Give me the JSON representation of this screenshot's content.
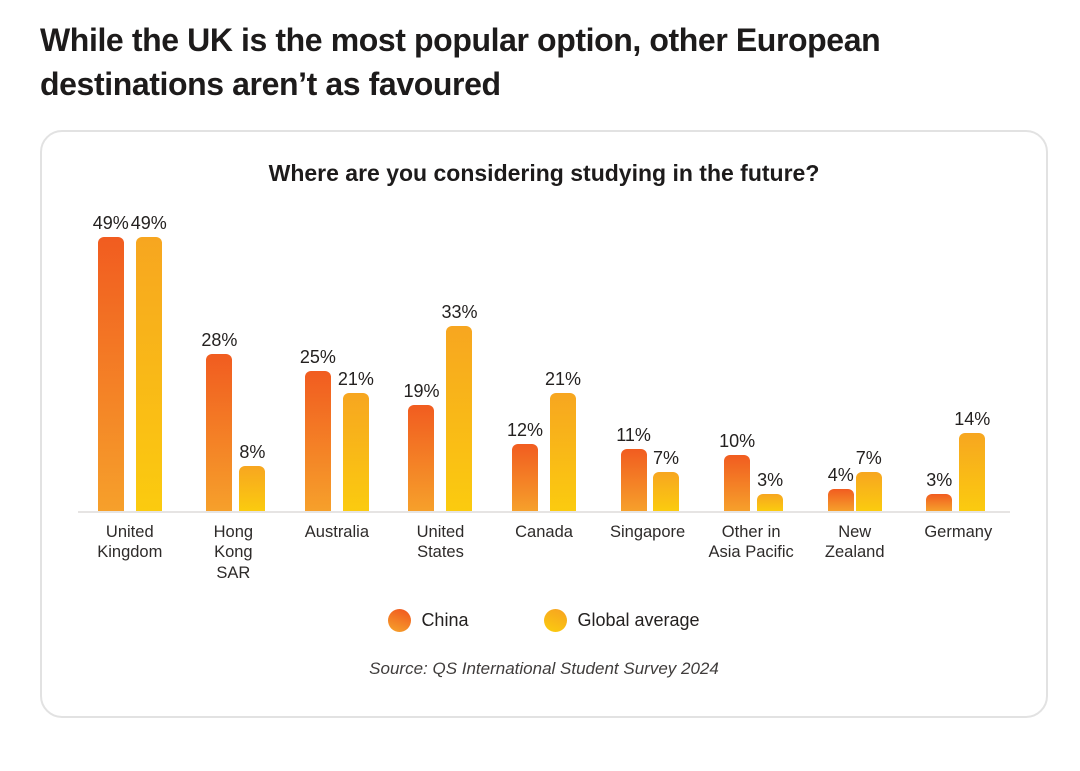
{
  "page": {
    "title": "While the UK is the most popular option, other European destinations aren’t as favoured"
  },
  "chart_data": {
    "type": "bar",
    "title": "Where are you considering studying in the future?",
    "categories": [
      "United Kingdom",
      "Hong Kong SAR",
      "Australia",
      "United States",
      "Canada",
      "Singapore",
      "Other in Asia Pacific",
      "New Zealand",
      "Germany"
    ],
    "category_lines": [
      [
        "United",
        "Kingdom"
      ],
      [
        "Hong",
        "Kong",
        "SAR"
      ],
      [
        "Australia"
      ],
      [
        "United",
        "States"
      ],
      [
        "Canada"
      ],
      [
        "Singapore"
      ],
      [
        "Other in",
        "Asia Pacific"
      ],
      [
        "New",
        "Zealand"
      ],
      [
        "Germany"
      ]
    ],
    "series": [
      {
        "name": "China",
        "values": [
          49,
          28,
          25,
          19,
          12,
          11,
          10,
          4,
          3
        ],
        "color_top": "#F15C20",
        "color_bottom": "#F6A02B"
      },
      {
        "name": "Global average",
        "values": [
          49,
          8,
          21,
          33,
          21,
          7,
          3,
          7,
          14
        ],
        "color_top": "#F7A620",
        "color_bottom": "#FBCB0F"
      }
    ],
    "value_suffix": "%",
    "ylim": [
      0,
      53
    ],
    "grid": false,
    "legend_position": "bottom",
    "source": "Source: QS International Student Survey 2024"
  }
}
